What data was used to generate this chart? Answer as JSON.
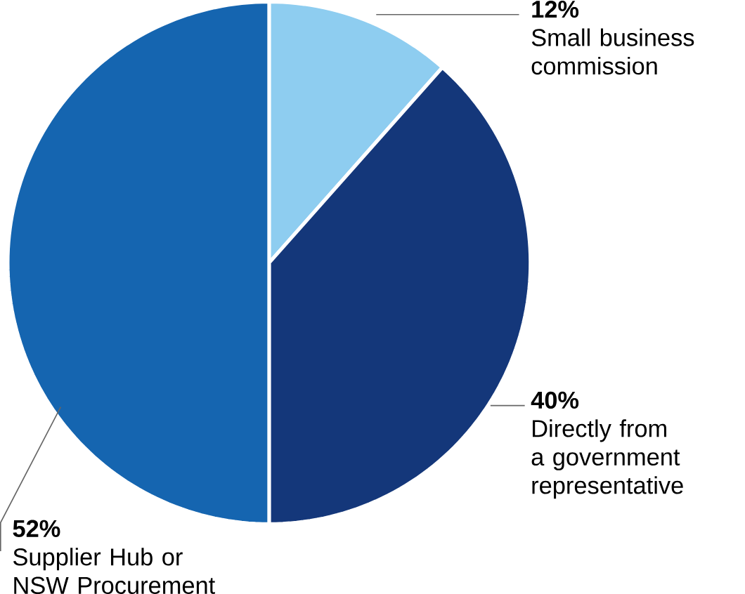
{
  "chart_data": {
    "type": "pie",
    "categories": [
      "Small business commission",
      "Directly from a government representative",
      "Supplier Hub or NSW Procurement"
    ],
    "values": [
      12,
      40,
      52
    ],
    "value_labels": [
      "12%",
      "40%",
      "52%"
    ],
    "colors": [
      "#8ecdf0",
      "#14377a",
      "#1565b0"
    ]
  }
}
